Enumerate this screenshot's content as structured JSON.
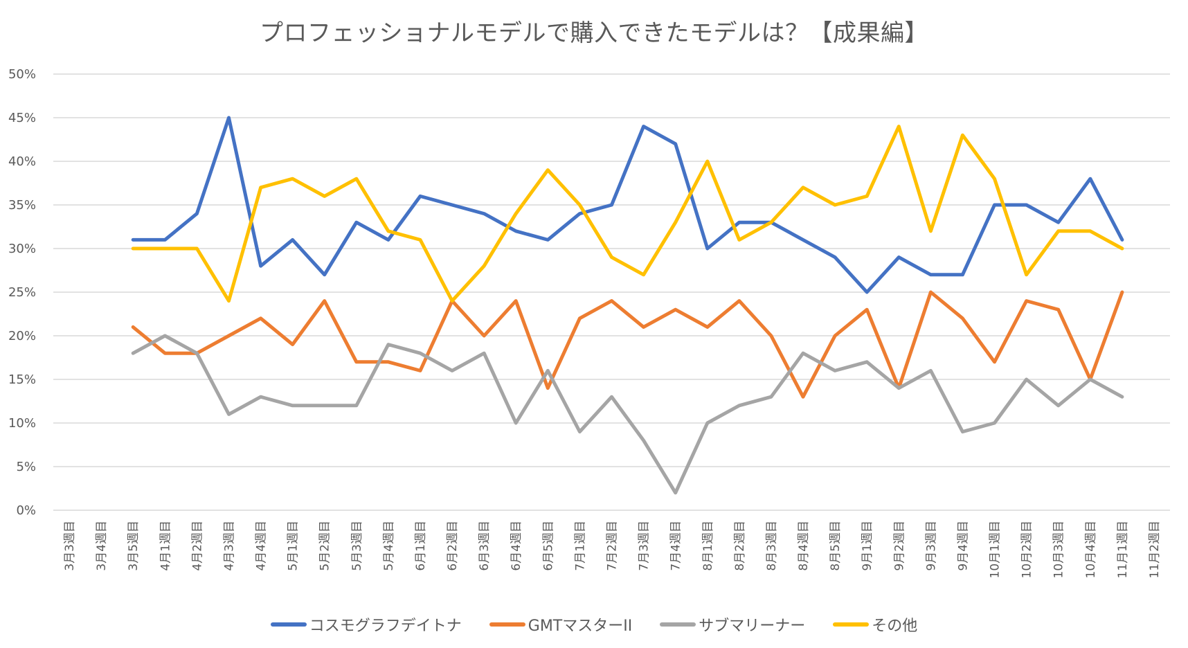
{
  "chart_data": {
    "type": "line",
    "title": "プロフェッショナルモデルで購入できたモデルは？【成果編】",
    "xlabel": "",
    "ylabel": "",
    "ylim": [
      0,
      50
    ],
    "y_ticks": [
      "0%",
      "5%",
      "10%",
      "15%",
      "20%",
      "25%",
      "30%",
      "35%",
      "40%",
      "45%",
      "50%"
    ],
    "y_tick_values": [
      0,
      5,
      10,
      15,
      20,
      25,
      30,
      35,
      40,
      45,
      50
    ],
    "grid": true,
    "legend_position": "bottom",
    "categories": [
      "3月3週目",
      "3月4週目",
      "3月5週目",
      "4月1週目",
      "4月2週目",
      "4月3週目",
      "4月4週目",
      "5月1週目",
      "5月2週目",
      "5月3週目",
      "5月4週目",
      "6月1週目",
      "6月2週目",
      "6月3週目",
      "6月4週目",
      "6月5週目",
      "7月1週目",
      "7月2週目",
      "7月3週目",
      "7月4週目",
      "8月1週目",
      "8月2週目",
      "8月3週目",
      "8月4週目",
      "8月5週目",
      "9月1週目",
      "9月2週目",
      "9月3週目",
      "9月4週目",
      "10月1週目",
      "10月2週目",
      "10月3週目",
      "10月4週目",
      "11月1週目",
      "11月2週目"
    ],
    "series": [
      {
        "name": "コスモグラフデイトナ",
        "color": "#4472C4",
        "values": [
          null,
          null,
          31,
          31,
          34,
          45,
          28,
          31,
          27,
          33,
          31,
          36,
          35,
          34,
          32,
          31,
          34,
          35,
          44,
          42,
          30,
          33,
          33,
          31,
          29,
          25,
          29,
          27,
          27,
          35,
          35,
          33,
          38,
          31,
          null
        ]
      },
      {
        "name": "GMTマスターII",
        "color": "#ED7D31",
        "values": [
          null,
          null,
          21,
          18,
          18,
          20,
          22,
          19,
          24,
          17,
          17,
          16,
          24,
          20,
          24,
          14,
          22,
          24,
          21,
          23,
          21,
          24,
          20,
          13,
          20,
          23,
          14,
          25,
          22,
          17,
          24,
          23,
          15,
          25,
          null
        ]
      },
      {
        "name": "サブマリーナー",
        "color": "#A5A5A5",
        "values": [
          null,
          null,
          18,
          20,
          18,
          11,
          13,
          12,
          12,
          12,
          19,
          18,
          16,
          18,
          10,
          16,
          9,
          13,
          8,
          2,
          10,
          12,
          13,
          18,
          16,
          17,
          14,
          16,
          9,
          10,
          15,
          12,
          15,
          13,
          null
        ]
      },
      {
        "name": "その他",
        "color": "#FFC000",
        "values": [
          null,
          null,
          30,
          30,
          30,
          24,
          37,
          38,
          36,
          38,
          32,
          31,
          24,
          28,
          34,
          39,
          35,
          29,
          27,
          33,
          40,
          31,
          33,
          37,
          35,
          36,
          44,
          32,
          43,
          38,
          27,
          32,
          32,
          30,
          null
        ]
      }
    ]
  }
}
